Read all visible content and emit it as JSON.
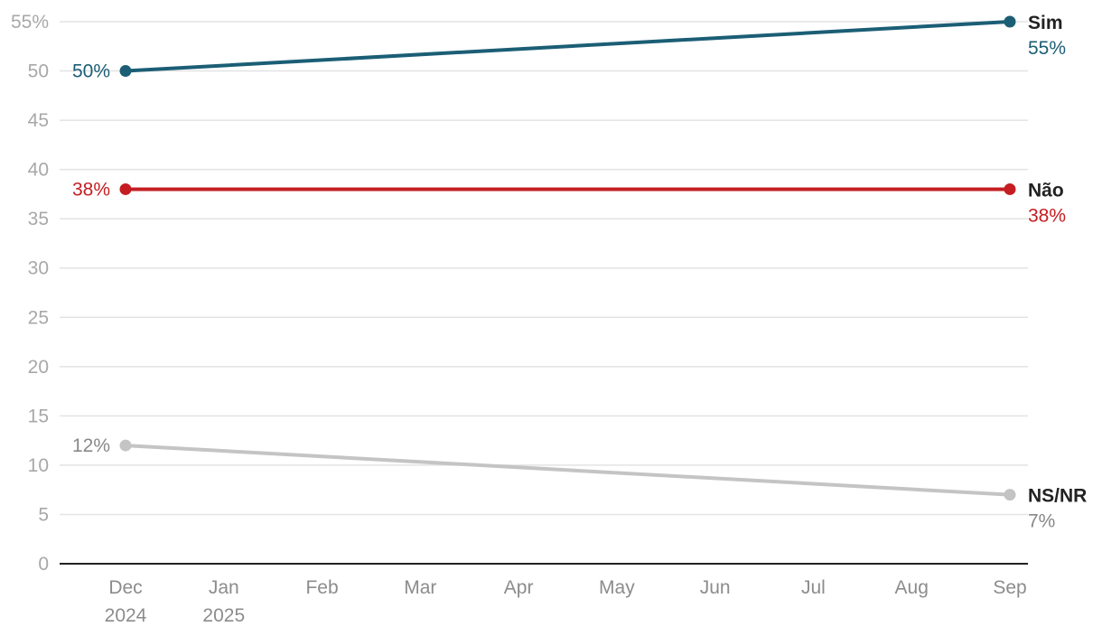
{
  "chart_data": {
    "type": "line",
    "y_ticks": [
      "0",
      "5",
      "10",
      "15",
      "20",
      "25",
      "30",
      "35",
      "40",
      "45",
      "50",
      "55%"
    ],
    "ylim": [
      0,
      55
    ],
    "x_ticks": [
      {
        "line1": "Dec",
        "line2": "2024",
        "date": "2024-12"
      },
      {
        "line1": "Jan",
        "line2": "2025",
        "date": "2025-01"
      },
      {
        "line1": "Feb",
        "line2": "",
        "date": "2025-02"
      },
      {
        "line1": "Mar",
        "line2": "",
        "date": "2025-03"
      },
      {
        "line1": "Apr",
        "line2": "",
        "date": "2025-04"
      },
      {
        "line1": "May",
        "line2": "",
        "date": "2025-05"
      },
      {
        "line1": "Jun",
        "line2": "",
        "date": "2025-06"
      },
      {
        "line1": "Jul",
        "line2": "",
        "date": "2025-07"
      },
      {
        "line1": "Aug",
        "line2": "",
        "date": "2025-08"
      },
      {
        "line1": "Sep",
        "line2": "",
        "date": "2025-09"
      }
    ],
    "x": [
      "2024-12",
      "2025-09"
    ],
    "series": [
      {
        "name": "Sim",
        "color": "#1b5e75",
        "values": [
          50,
          55
        ],
        "start_label": "50%",
        "end_label": "55%"
      },
      {
        "name": "Não",
        "color": "#c41e22",
        "values": [
          38,
          38
        ],
        "start_label": "38%",
        "end_label": "38%"
      },
      {
        "name": "NS/NR",
        "color": "#c4c4c4",
        "label_color": "#888888",
        "values": [
          12,
          7
        ],
        "start_label": "12%",
        "end_label": "7%"
      }
    ],
    "grid": true,
    "legend": "direct labels at line ends"
  }
}
